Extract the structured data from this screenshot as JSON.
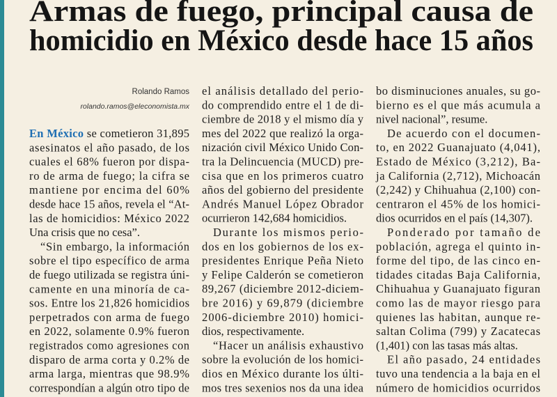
{
  "headline": {
    "lines": [
      "Armas de fuego, principal causa de",
      "homicidio en México desde hace 15 años"
    ]
  },
  "byline": {
    "author": "Rolando Ramos",
    "email": "rolando.ramos@eleconomista.mx"
  },
  "columns": [
    {
      "lead": "En México",
      "paragraphs": [
        [
          " se cometieron 31,895",
          "asesinatos el año pasado, de los",
          "cuales el 68% fueron por dispa-",
          "ro de arma de fuego; la cifra se",
          "mantiene por encima del 60%",
          "desde hace 15 años, revela el “At-",
          "las de homicidios: México 2022",
          "Una crisis que no cesa”."
        ],
        [
          "“Sin embargo, la información",
          "sobre el tipo específico de arma",
          "de fuego utilizada se registra úni-",
          "camente en una minoría de ca-",
          "sos. Entre los 21,826 homicidios",
          "perpetrados con arma de fuego",
          "en 2022, solamente 0.9% fueron",
          "registrados como agresiones con",
          "disparo de arma corta y 0.2% de",
          "arma larga, mientras que 98.9%",
          "correspondían a algún otro tipo de"
        ]
      ]
    },
    {
      "paragraphs": [
        [
          "el análisis detallado del perio-",
          "do comprendido entre el 1 de di-",
          "ciembre de 2018 y el mismo día y",
          "mes del 2022 que realizó la orga-",
          "nización civil México Unido Con-",
          "tra la Delincuencia (MUCD) pre-",
          "cisa que en los primeros cuatro",
          "años del gobierno del presidente",
          "Andrés Manuel López Obrador",
          "ocurrieron 142,684 homicidios."
        ],
        [
          "Durante los mismos perio-",
          "dos en los gobiernos de los ex-",
          "presidentes Enrique Peña Nieto",
          "y Felipe Calderón se cometieron",
          "89,267 (diciembre 2012-diciem-",
          "bre 2016) y 69,879 (diciembre",
          "2006-diciembre 2010) homici-",
          "dios, respectivamente."
        ],
        [
          "“Hacer un análisis exhaustivo",
          "sobre la evolución de los homici-",
          "dios en México durante los últi-",
          "mos tres sexenios nos da una idea"
        ]
      ]
    },
    {
      "paragraphs": [
        [
          "bo disminuciones anuales, su go-",
          "bierno es el que más acumula a",
          "nivel nacional”, resume."
        ],
        [
          "De acuerdo con el documen-",
          "to, en 2022 Guanajuato (4,041),",
          "Estado de México (3,212), Ba-",
          "ja California (2,712), Michoacán",
          "(2,242) y Chihuahua (2,100) con-",
          "centraron el 45% de los homici-",
          "dios ocurridos en el país (14,307)."
        ],
        [
          "Ponderado por tamaño de",
          "población, agrega el quinto in-",
          "forme del tipo, de las cinco en-",
          "tidades citadas Baja California,",
          "Chihuahua y Guanajuato figuran",
          "como las de mayor riesgo para",
          "quienes las habitan, aunque re-",
          "saltan Colima (799) y Zacatecas",
          "(1,401) con las tasas más altas."
        ],
        [
          "El año pasado, 24 entidades",
          "tuvo una tendencia a la baja en el",
          "número de homicidios ocurridos"
        ]
      ]
    }
  ]
}
